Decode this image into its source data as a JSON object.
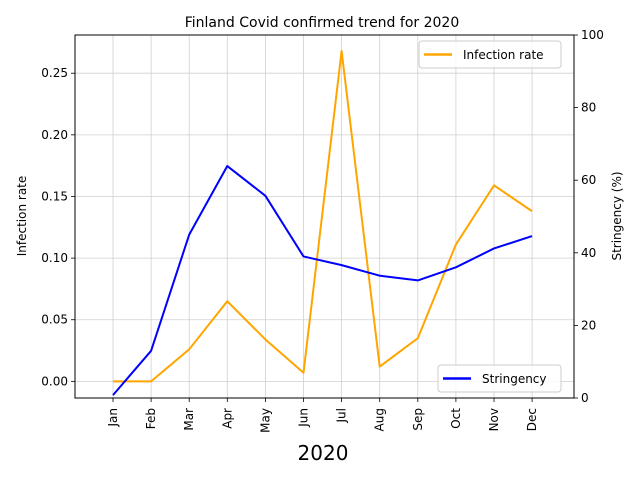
{
  "chart_data": {
    "type": "line",
    "title": "Finland Covid confirmed trend for 2020",
    "xlabel": "2020",
    "ylabel_left": "Infection rate",
    "ylabel_right": "Stringency (%)",
    "categories": [
      "Jan",
      "Feb",
      "Mar",
      "Apr",
      "May",
      "Jun",
      "Jul",
      "Aug",
      "Sep",
      "Oct",
      "Nov",
      "Dec"
    ],
    "ylim_left": [
      -0.0135,
      0.281
    ],
    "yticks_left": [
      "0.00",
      "0.05",
      "0.10",
      "0.15",
      "0.20",
      "0.25"
    ],
    "ylim_right": [
      0,
      100
    ],
    "yticks_right": [
      "0",
      "20",
      "40",
      "60",
      "80",
      "100"
    ],
    "grid": true,
    "series": [
      {
        "name": "Infection rate",
        "axis": "left",
        "color": "#FFA500",
        "values": [
          0.0,
          0.0,
          0.026,
          0.065,
          0.034,
          0.007,
          0.268,
          0.012,
          0.035,
          0.111,
          0.159,
          0.138
        ],
        "legend_position": "top-right"
      },
      {
        "name": "Stringency",
        "axis": "right",
        "color": "#0000FF",
        "values": [
          0.8,
          13.0,
          45.0,
          63.9,
          55.7,
          39.0,
          36.6,
          33.7,
          32.4,
          36.0,
          41.2,
          44.6
        ],
        "legend_position": "bottom-right"
      }
    ]
  }
}
